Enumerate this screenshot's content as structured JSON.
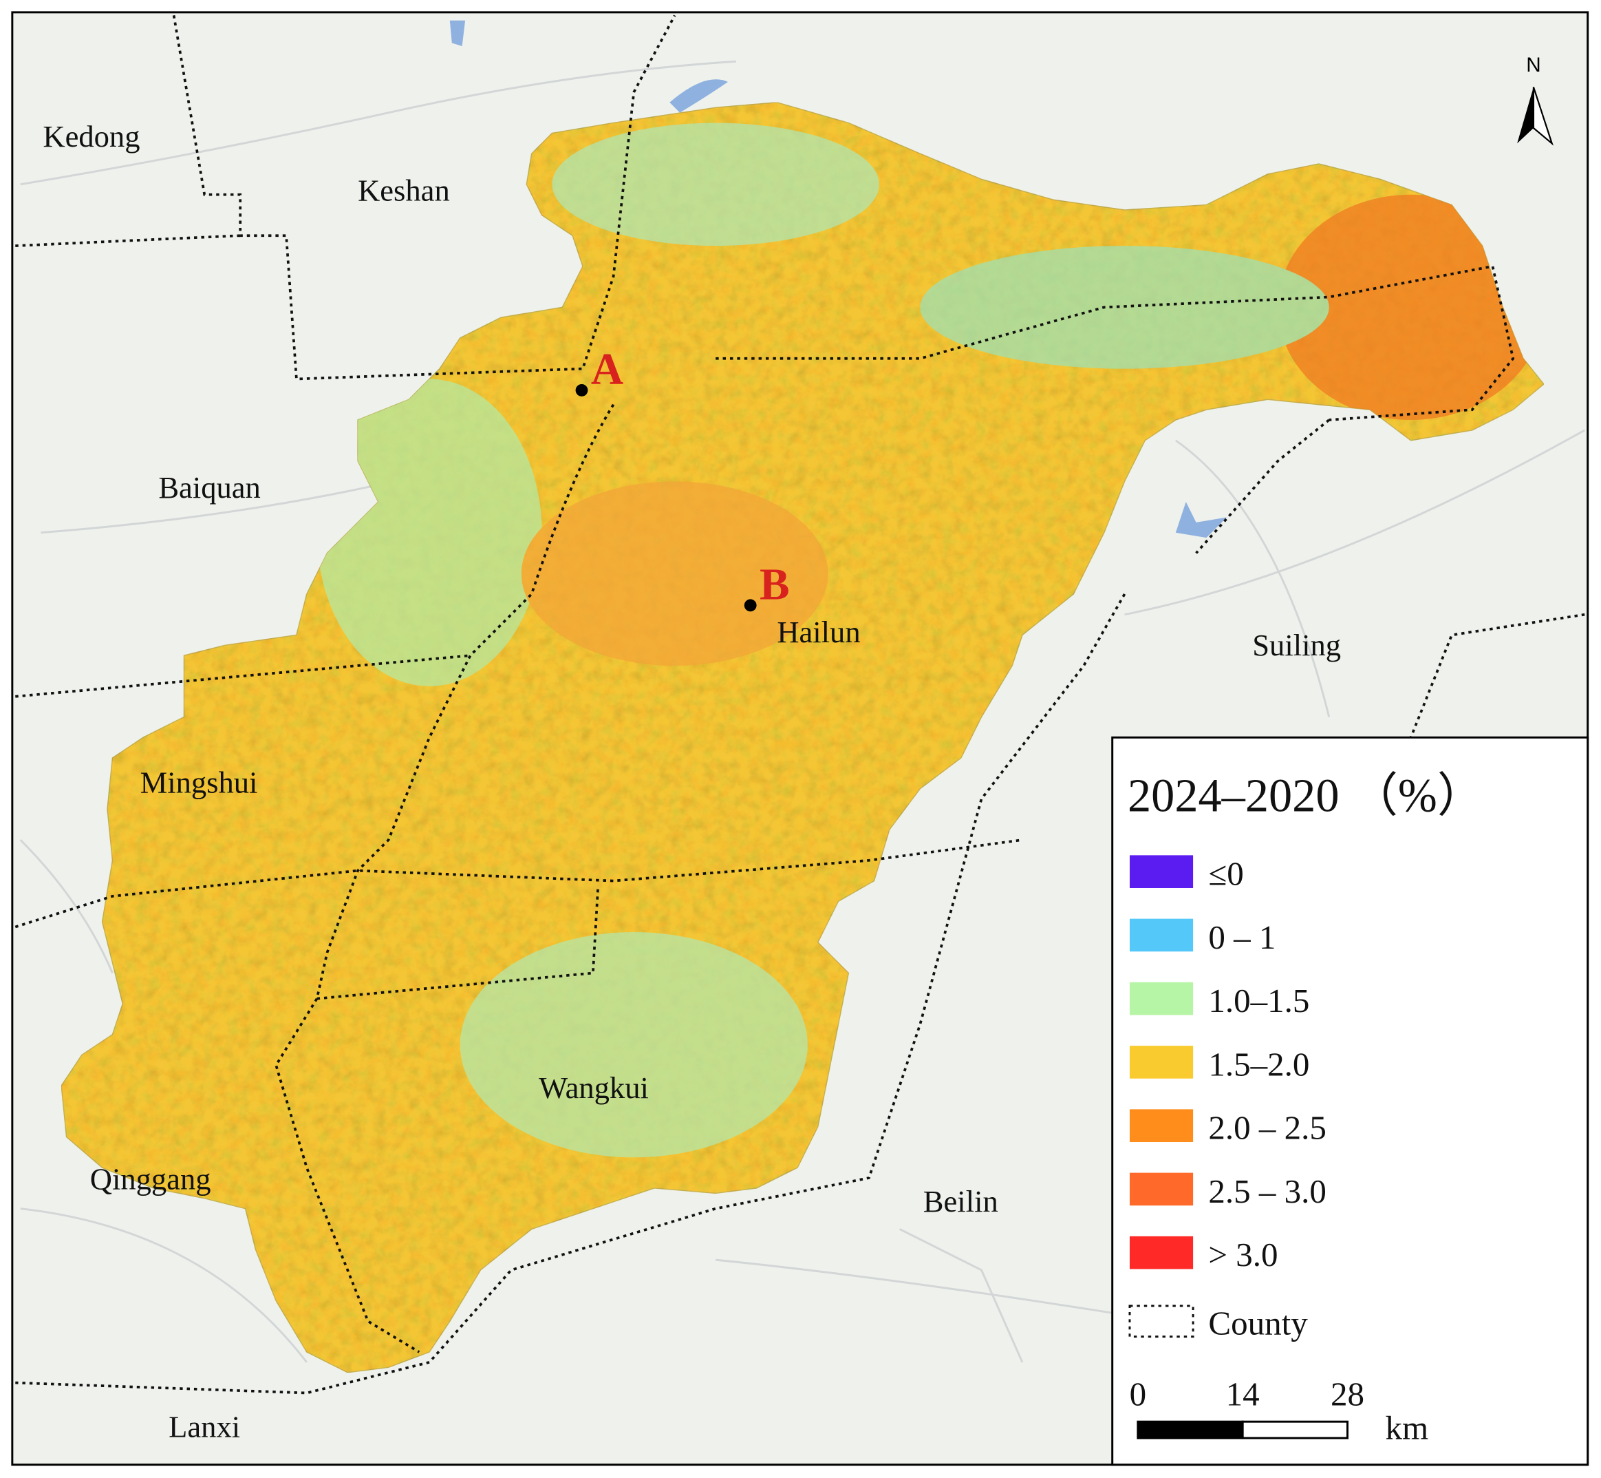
{
  "map": {
    "places": [
      {
        "label": "Kedong"
      },
      {
        "label": "Keshan"
      },
      {
        "label": "Baiquan"
      },
      {
        "label": "Hailun"
      },
      {
        "label": "Suiling"
      },
      {
        "label": "Mingshui"
      },
      {
        "label": "Wangkui"
      },
      {
        "label": "Qinggang"
      },
      {
        "label": "Beilin"
      },
      {
        "label": "Lanxi"
      }
    ],
    "points": [
      {
        "label": "A"
      },
      {
        "label": "B"
      }
    ],
    "north": "N",
    "legend": {
      "title": "2024–2020 （%）",
      "items": [
        {
          "label": "≤0",
          "color": "#5a1cf0"
        },
        {
          "label": "0 – 1",
          "color": "#55c8fa"
        },
        {
          "label": "1.0–1.5",
          "color": "#b6f5a6"
        },
        {
          "label": "1.5–2.0",
          "color": "#f9cb2e"
        },
        {
          "label": "2.0 – 2.5",
          "color": "#ff8d1c"
        },
        {
          "label": "2.5 – 3.0",
          "color": "#ff6a2a"
        },
        {
          "label": "> 3.0",
          "color": "#ff2a28"
        }
      ],
      "county": "County"
    },
    "scale_bar": {
      "ticks": [
        0,
        14,
        28
      ],
      "unit": "km"
    }
  }
}
